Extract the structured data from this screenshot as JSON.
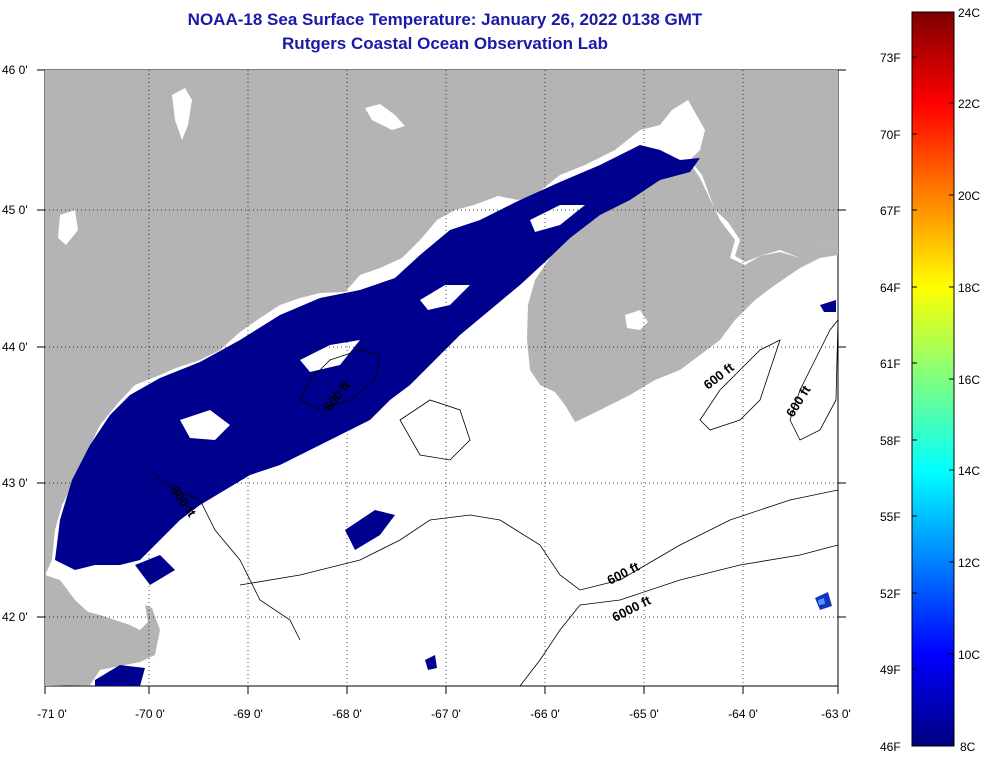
{
  "title": {
    "line1": "NOAA-18 Sea Surface Temperature:  January 26, 2022 0138 GMT",
    "line2": "Rutgers Coastal Ocean Observation Lab"
  },
  "map": {
    "longitude_labels": [
      "-71 0'",
      "-70 0'",
      "-69 0'",
      "-68 0'",
      "-67 0'",
      "-66 0'",
      "-65 0'",
      "-64 0'",
      "-63 0'"
    ],
    "latitude_labels": [
      "46 0'",
      "45 0'",
      "44 0'",
      "43 0'",
      "42 0'"
    ],
    "contour_labels": [
      "600 ft",
      "600 ft",
      "600 ft",
      "600 ft",
      "600 ft",
      "6000 ft"
    ],
    "colors": {
      "land": "#b4b4b4",
      "cold_water": "#00008f",
      "no_data": "#ffffff"
    }
  },
  "colorbar": {
    "celsius_labels": [
      "24C",
      "22C",
      "20C",
      "18C",
      "16C",
      "14C",
      "12C",
      "10C",
      "8C"
    ],
    "fahrenheit_labels": [
      "73F",
      "70F",
      "67F",
      "64F",
      "61F",
      "58F",
      "55F",
      "52F",
      "49F",
      "46F"
    ]
  }
}
